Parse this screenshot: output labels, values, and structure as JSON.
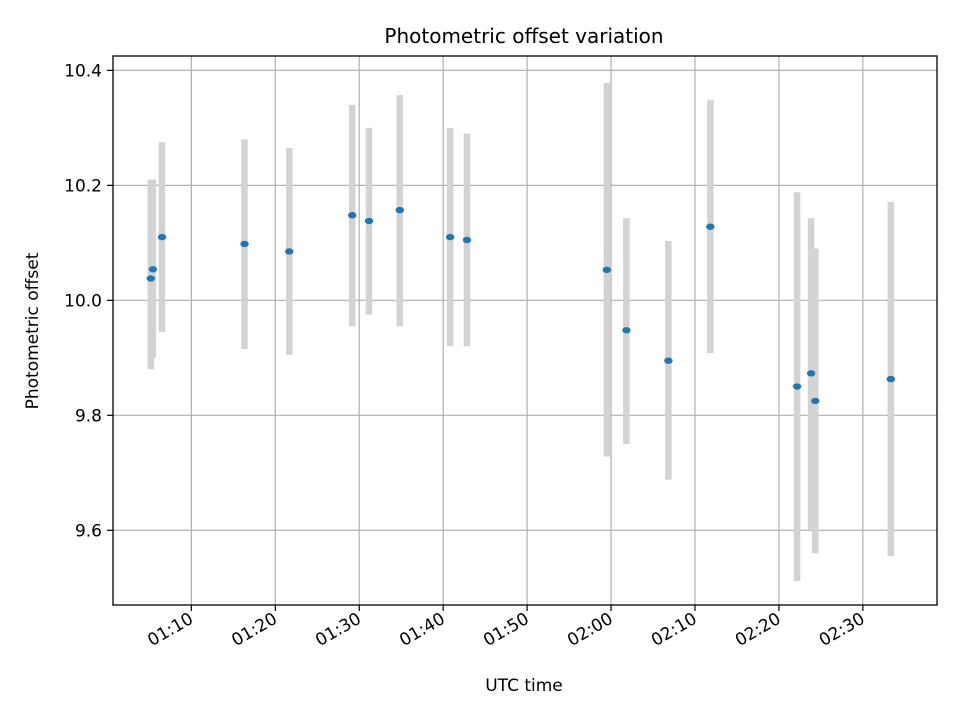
{
  "chart_data": {
    "type": "scatter",
    "title": "Photometric offset variation",
    "xlabel": "UTC time",
    "ylabel": "Photometric offset",
    "xlim": [
      "01:00:40",
      "02:38:50"
    ],
    "ylim": [
      9.47,
      10.425
    ],
    "grid": true,
    "x_ticks": [
      "01:10",
      "01:20",
      "01:30",
      "01:40",
      "01:50",
      "02:00",
      "02:10",
      "02:20",
      "02:30"
    ],
    "y_ticks": [
      "9.6",
      "9.8",
      "10.0",
      "10.2",
      "10.4"
    ],
    "colors": {
      "points": "#1f77b4",
      "error_bars": "#d3d3d3",
      "grid": "#b0b0b0"
    },
    "series": [
      {
        "points": [
          {
            "x": "01:05:10",
            "y": 10.038,
            "yerr_low": 9.88,
            "yerr_high": 10.21
          },
          {
            "x": "01:05:25",
            "y": 10.054,
            "yerr_low": 9.9,
            "yerr_high": 10.21
          },
          {
            "x": "01:06:30",
            "y": 10.11,
            "yerr_low": 9.945,
            "yerr_high": 10.275
          },
          {
            "x": "01:16:20",
            "y": 10.098,
            "yerr_low": 9.915,
            "yerr_high": 10.28
          },
          {
            "x": "01:21:40",
            "y": 10.085,
            "yerr_low": 9.905,
            "yerr_high": 10.265
          },
          {
            "x": "01:29:10",
            "y": 10.148,
            "yerr_low": 9.955,
            "yerr_high": 10.34
          },
          {
            "x": "01:31:10",
            "y": 10.138,
            "yerr_low": 9.975,
            "yerr_high": 10.3
          },
          {
            "x": "01:34:50",
            "y": 10.157,
            "yerr_low": 9.955,
            "yerr_high": 10.357
          },
          {
            "x": "01:40:50",
            "y": 10.11,
            "yerr_low": 9.92,
            "yerr_high": 10.3
          },
          {
            "x": "01:42:50",
            "y": 10.105,
            "yerr_low": 9.92,
            "yerr_high": 10.29
          },
          {
            "x": "01:59:30",
            "y": 10.053,
            "yerr_low": 9.728,
            "yerr_high": 10.378
          },
          {
            "x": "02:01:50",
            "y": 9.948,
            "yerr_low": 9.75,
            "yerr_high": 10.143
          },
          {
            "x": "02:06:50",
            "y": 9.895,
            "yerr_low": 9.688,
            "yerr_high": 10.103
          },
          {
            "x": "02:11:50",
            "y": 10.128,
            "yerr_low": 9.908,
            "yerr_high": 10.348
          },
          {
            "x": "02:22:10",
            "y": 9.85,
            "yerr_low": 9.512,
            "yerr_high": 10.188
          },
          {
            "x": "02:23:50",
            "y": 9.873,
            "yerr_low": 9.6,
            "yerr_high": 10.143
          },
          {
            "x": "02:24:20",
            "y": 9.825,
            "yerr_low": 9.56,
            "yerr_high": 10.09
          },
          {
            "x": "02:33:20",
            "y": 9.863,
            "yerr_low": 9.555,
            "yerr_high": 10.171
          }
        ]
      }
    ]
  }
}
